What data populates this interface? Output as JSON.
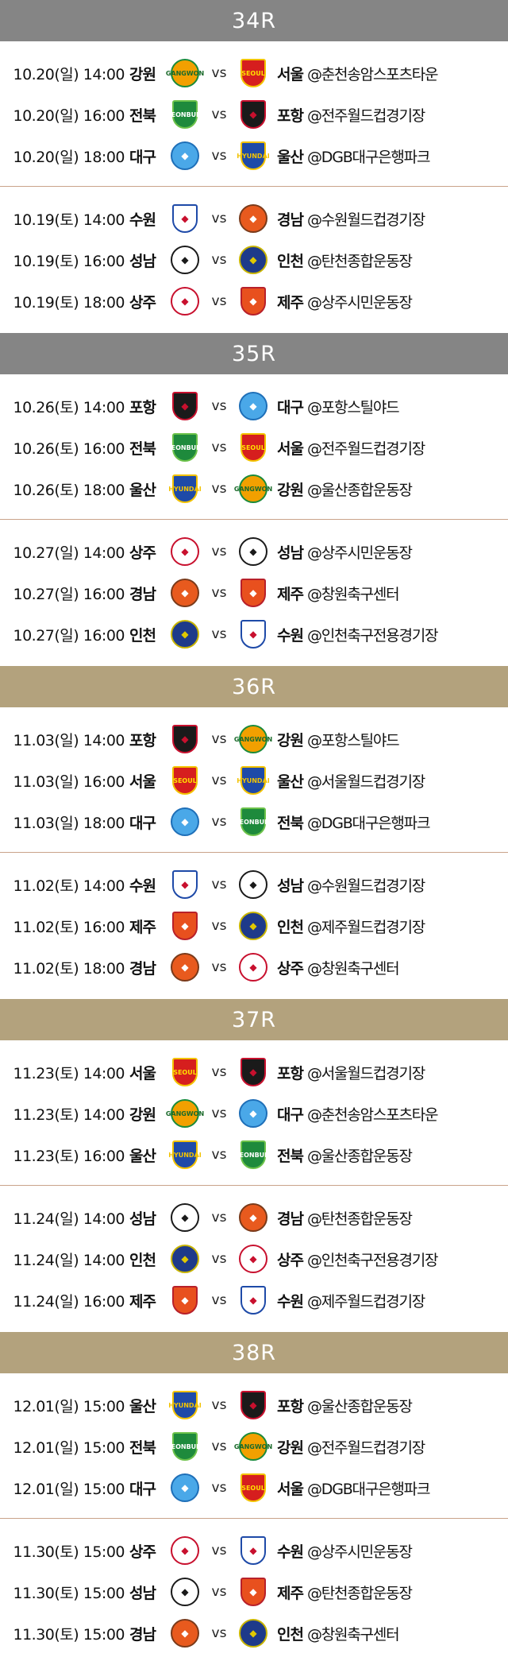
{
  "teams": {
    "gangwon": {
      "label": "GANGWON",
      "shape": "circle",
      "bg": "#f2a000",
      "border": "#1a8a3a",
      "fg": "#1a6a2a"
    },
    "seoul": {
      "label": "SEOUL",
      "shape": "shield",
      "bg": "#d61e1e",
      "border": "#f3c300",
      "fg": "#ffe000"
    },
    "jeonbuk": {
      "label": "JEONBUK",
      "shape": "shield",
      "bg": "#1e8a3c",
      "border": "#6cc24a",
      "fg": "#ffffff"
    },
    "pohang": {
      "label": "",
      "shape": "shield",
      "bg": "#1a1a1a",
      "border": "#c8102e",
      "fg": "#c8102e"
    },
    "daegu": {
      "label": "",
      "shape": "circle",
      "bg": "#4aa8e8",
      "border": "#1e6fb8",
      "fg": "#ffffff"
    },
    "ulsan": {
      "label": "HYUNDAI",
      "shape": "shield",
      "bg": "#1e4aa8",
      "border": "#f2c200",
      "fg": "#f2c200"
    },
    "suwon": {
      "label": "",
      "shape": "shield",
      "bg": "#ffffff",
      "border": "#1e4aa8",
      "fg": "#c8102e"
    },
    "gyeongnam": {
      "label": "",
      "shape": "circle",
      "bg": "#e85a1e",
      "border": "#7a3a1a",
      "fg": "#ffffff"
    },
    "seongnam": {
      "label": "",
      "shape": "circle",
      "bg": "#ffffff",
      "border": "#1a1a1a",
      "fg": "#1a1a1a"
    },
    "incheon": {
      "label": "",
      "shape": "circle",
      "bg": "#1e3a8a",
      "border": "#c8b400",
      "fg": "#e0c800"
    },
    "sangju": {
      "label": "",
      "shape": "circle",
      "bg": "#ffffff",
      "border": "#c8102e",
      "fg": "#c8102e"
    },
    "jeju": {
      "label": "",
      "shape": "shield",
      "bg": "#e8501e",
      "border": "#b8202a",
      "fg": "#ffffff"
    }
  },
  "vs_label": "vs",
  "rounds": [
    {
      "title": "34R",
      "color": "gray",
      "groups": [
        [
          {
            "date": "10.20(일) 14:00",
            "home": "강원",
            "home_team": "gangwon",
            "away": "서울",
            "away_team": "seoul",
            "venue": "@춘천송암스포츠타운"
          },
          {
            "date": "10.20(일) 16:00",
            "home": "전북",
            "home_team": "jeonbuk",
            "away": "포항",
            "away_team": "pohang",
            "venue": "@전주월드컵경기장"
          },
          {
            "date": "10.20(일) 18:00",
            "home": "대구",
            "home_team": "daegu",
            "away": "울산",
            "away_team": "ulsan",
            "venue": "@DGB대구은행파크"
          }
        ],
        [
          {
            "date": "10.19(토) 14:00",
            "home": "수원",
            "home_team": "suwon",
            "away": "경남",
            "away_team": "gyeongnam",
            "venue": "@수원월드컵경기장"
          },
          {
            "date": "10.19(토) 16:00",
            "home": "성남",
            "home_team": "seongnam",
            "away": "인천",
            "away_team": "incheon",
            "venue": "@탄천종합운동장"
          },
          {
            "date": "10.19(토) 18:00",
            "home": "상주",
            "home_team": "sangju",
            "away": "제주",
            "away_team": "jeju",
            "venue": "@상주시민운동장"
          }
        ]
      ]
    },
    {
      "title": "35R",
      "color": "gray",
      "groups": [
        [
          {
            "date": "10.26(토) 14:00",
            "home": "포항",
            "home_team": "pohang",
            "away": "대구",
            "away_team": "daegu",
            "venue": "@포항스틸야드"
          },
          {
            "date": "10.26(토) 16:00",
            "home": "전북",
            "home_team": "jeonbuk",
            "away": "서울",
            "away_team": "seoul",
            "venue": "@전주월드컵경기장"
          },
          {
            "date": "10.26(토) 18:00",
            "home": "울산",
            "home_team": "ulsan",
            "away": "강원",
            "away_team": "gangwon",
            "venue": "@울산종합운동장"
          }
        ],
        [
          {
            "date": "10.27(일) 14:00",
            "home": "상주",
            "home_team": "sangju",
            "away": "성남",
            "away_team": "seongnam",
            "venue": "@상주시민운동장"
          },
          {
            "date": "10.27(일) 16:00",
            "home": "경남",
            "home_team": "gyeongnam",
            "away": "제주",
            "away_team": "jeju",
            "venue": "@창원축구센터"
          },
          {
            "date": "10.27(일) 16:00",
            "home": "인천",
            "home_team": "incheon",
            "away": "수원",
            "away_team": "suwon",
            "venue": "@인천축구전용경기장"
          }
        ]
      ]
    },
    {
      "title": "36R",
      "color": "gold",
      "groups": [
        [
          {
            "date": "11.03(일) 14:00",
            "home": "포항",
            "home_team": "pohang",
            "away": "강원",
            "away_team": "gangwon",
            "venue": "@포항스틸야드"
          },
          {
            "date": "11.03(일) 16:00",
            "home": "서울",
            "home_team": "seoul",
            "away": "울산",
            "away_team": "ulsan",
            "venue": "@서울월드컵경기장"
          },
          {
            "date": "11.03(일) 18:00",
            "home": "대구",
            "home_team": "daegu",
            "away": "전북",
            "away_team": "jeonbuk",
            "venue": "@DGB대구은행파크"
          }
        ],
        [
          {
            "date": "11.02(토) 14:00",
            "home": "수원",
            "home_team": "suwon",
            "away": "성남",
            "away_team": "seongnam",
            "venue": "@수원월드컵경기장"
          },
          {
            "date": "11.02(토) 16:00",
            "home": "제주",
            "home_team": "jeju",
            "away": "인천",
            "away_team": "incheon",
            "venue": "@제주월드컵경기장"
          },
          {
            "date": "11.02(토) 18:00",
            "home": "경남",
            "home_team": "gyeongnam",
            "away": "상주",
            "away_team": "sangju",
            "venue": "@창원축구센터"
          }
        ]
      ]
    },
    {
      "title": "37R",
      "color": "gold",
      "groups": [
        [
          {
            "date": "11.23(토) 14:00",
            "home": "서울",
            "home_team": "seoul",
            "away": "포항",
            "away_team": "pohang",
            "venue": "@서울월드컵경기장"
          },
          {
            "date": "11.23(토) 14:00",
            "home": "강원",
            "home_team": "gangwon",
            "away": "대구",
            "away_team": "daegu",
            "venue": "@춘천송암스포츠타운"
          },
          {
            "date": "11.23(토) 16:00",
            "home": "울산",
            "home_team": "ulsan",
            "away": "전북",
            "away_team": "jeonbuk",
            "venue": "@울산종합운동장"
          }
        ],
        [
          {
            "date": "11.24(일) 14:00",
            "home": "성남",
            "home_team": "seongnam",
            "away": "경남",
            "away_team": "gyeongnam",
            "venue": "@탄천종합운동장"
          },
          {
            "date": "11.24(일) 14:00",
            "home": "인천",
            "home_team": "incheon",
            "away": "상주",
            "away_team": "sangju",
            "venue": "@인천축구전용경기장"
          },
          {
            "date": "11.24(일) 16:00",
            "home": "제주",
            "home_team": "jeju",
            "away": "수원",
            "away_team": "suwon",
            "venue": "@제주월드컵경기장"
          }
        ]
      ]
    },
    {
      "title": "38R",
      "color": "gold",
      "groups": [
        [
          {
            "date": "12.01(일) 15:00",
            "home": "울산",
            "home_team": "ulsan",
            "away": "포항",
            "away_team": "pohang",
            "venue": "@울산종합운동장"
          },
          {
            "date": "12.01(일) 15:00",
            "home": "전북",
            "home_team": "jeonbuk",
            "away": "강원",
            "away_team": "gangwon",
            "venue": "@전주월드컵경기장"
          },
          {
            "date": "12.01(일) 15:00",
            "home": "대구",
            "home_team": "daegu",
            "away": "서울",
            "away_team": "seoul",
            "venue": "@DGB대구은행파크"
          }
        ],
        [
          {
            "date": "11.30(토) 15:00",
            "home": "상주",
            "home_team": "sangju",
            "away": "수원",
            "away_team": "suwon",
            "venue": "@상주시민운동장"
          },
          {
            "date": "11.30(토) 15:00",
            "home": "성남",
            "home_team": "seongnam",
            "away": "제주",
            "away_team": "jeju",
            "venue": "@탄천종합운동장"
          },
          {
            "date": "11.30(토) 15:00",
            "home": "경남",
            "home_team": "gyeongnam",
            "away": "인천",
            "away_team": "incheon",
            "venue": "@창원축구센터"
          }
        ]
      ]
    }
  ]
}
